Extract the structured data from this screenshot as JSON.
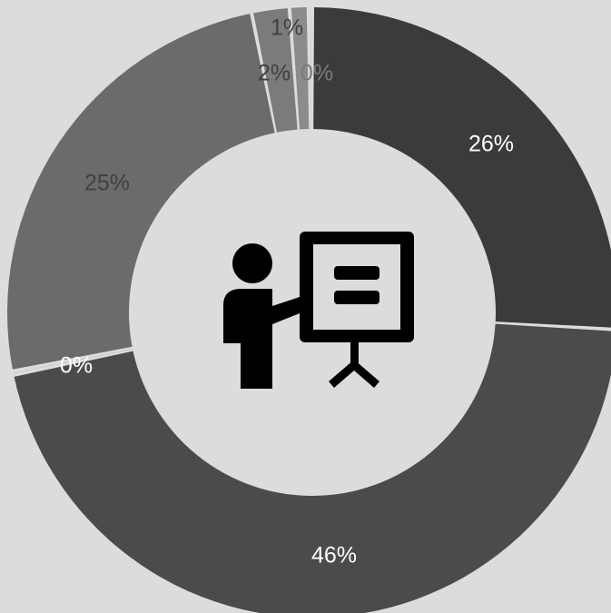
{
  "chart_data": {
    "type": "pie",
    "donut": true,
    "slices": [
      {
        "label": "26%",
        "value": 26,
        "color": "#3b3b3b",
        "label_color": "#ffffff"
      },
      {
        "label": "46%",
        "value": 46,
        "color": "#4b4b4b",
        "label_color": "#ffffff"
      },
      {
        "label": "0%",
        "value": 0.2,
        "color": "#5a5a5a",
        "label_color": "#ffffff"
      },
      {
        "label": "25%",
        "value": 25,
        "color": "#6b6b6b",
        "label_color": "#404040"
      },
      {
        "label": "2%",
        "value": 2,
        "color": "#7b7b7b",
        "label_color": "#404040"
      },
      {
        "label": "1%",
        "value": 1,
        "color": "#8b8b8b",
        "label_color": "#404040"
      },
      {
        "label": "0%",
        "value": 0.2,
        "color": "#9a9a9a",
        "label_color": "#7a7a7a"
      }
    ],
    "center_icon": "presentation-icon"
  }
}
